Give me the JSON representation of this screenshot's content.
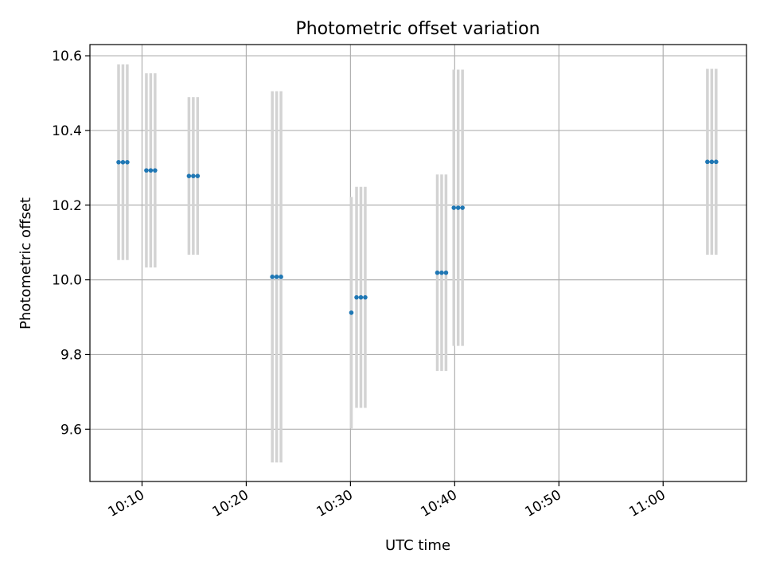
{
  "chart_data": {
    "type": "scatter",
    "title": "Photometric offset variation",
    "xlabel": "UTC time",
    "ylabel": "Photometric offset",
    "xlim": [
      "10:05:00",
      "11:08:00"
    ],
    "ylim": [
      9.46,
      10.63
    ],
    "x_ticks": [
      "10:10",
      "10:20",
      "10:30",
      "10:40",
      "10:50",
      "11:00"
    ],
    "y_ticks": [
      9.6,
      9.8,
      10.0,
      10.2,
      10.4,
      10.6
    ],
    "y_tick_labels": [
      "9.6",
      "9.8",
      "10.0",
      "10.2",
      "10.4",
      "10.6"
    ],
    "grid": true,
    "colors": {
      "points": "#1f77b4",
      "errorbars": "#d3d3d3"
    },
    "points": [
      {
        "t": "10:07:45",
        "y": 10.315,
        "err": 0.262
      },
      {
        "t": "10:08:10",
        "y": 10.315,
        "err": 0.262
      },
      {
        "t": "10:08:35",
        "y": 10.315,
        "err": 0.262
      },
      {
        "t": "10:10:25",
        "y": 10.293,
        "err": 0.26
      },
      {
        "t": "10:10:50",
        "y": 10.293,
        "err": 0.26
      },
      {
        "t": "10:11:15",
        "y": 10.293,
        "err": 0.26
      },
      {
        "t": "10:14:30",
        "y": 10.278,
        "err": 0.211
      },
      {
        "t": "10:14:55",
        "y": 10.278,
        "err": 0.211
      },
      {
        "t": "10:15:20",
        "y": 10.278,
        "err": 0.211
      },
      {
        "t": "10:22:30",
        "y": 10.008,
        "err": 0.497
      },
      {
        "t": "10:22:55",
        "y": 10.008,
        "err": 0.497
      },
      {
        "t": "10:23:20",
        "y": 10.008,
        "err": 0.497
      },
      {
        "t": "10:30:05",
        "y": 9.912,
        "err": 0.31
      },
      {
        "t": "10:30:35",
        "y": 9.953,
        "err": 0.296
      },
      {
        "t": "10:31:00",
        "y": 9.953,
        "err": 0.296
      },
      {
        "t": "10:31:25",
        "y": 9.953,
        "err": 0.296
      },
      {
        "t": "10:38:20",
        "y": 10.019,
        "err": 0.263
      },
      {
        "t": "10:38:45",
        "y": 10.019,
        "err": 0.263
      },
      {
        "t": "10:39:10",
        "y": 10.019,
        "err": 0.263
      },
      {
        "t": "10:39:55",
        "y": 10.193,
        "err": 0.37
      },
      {
        "t": "10:40:20",
        "y": 10.193,
        "err": 0.37
      },
      {
        "t": "10:40:45",
        "y": 10.193,
        "err": 0.37
      },
      {
        "t": "11:04:15",
        "y": 10.316,
        "err": 0.249
      },
      {
        "t": "11:04:40",
        "y": 10.316,
        "err": 0.249
      },
      {
        "t": "11:05:05",
        "y": 10.316,
        "err": 0.249
      }
    ]
  }
}
